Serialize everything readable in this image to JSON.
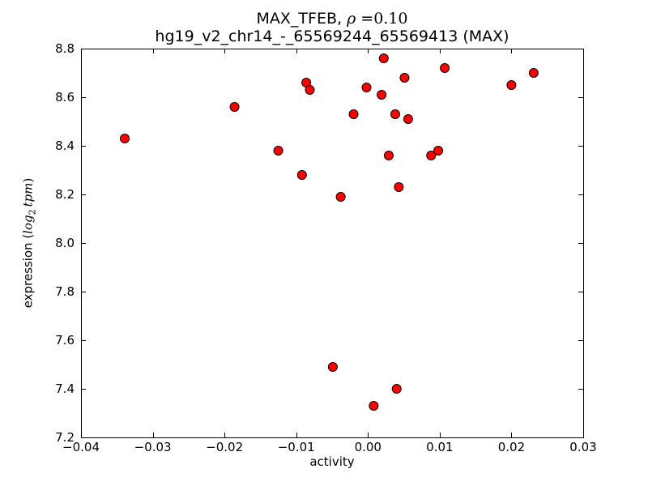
{
  "title": {
    "line1_prefix": "MAX_TFEB, ",
    "rho_symbol": "ρ",
    "rho_value": " =0.10",
    "line2": "hg19_v2_chr14_-_65569244_65569413 (MAX)"
  },
  "axes": {
    "xlabel": "activity",
    "ylabel_prefix": "expression (",
    "ylabel_log": "log",
    "ylabel_sub": "2",
    "ylabel_tpm": "tpm",
    "ylabel_close": ")"
  },
  "chart_data": {
    "type": "scatter",
    "title": "MAX_TFEB, ρ =0.10",
    "subtitle": "hg19_v2_chr14_-_65569244_65569413 (MAX)",
    "xlabel": "activity",
    "ylabel": "expression (log2 tpm)",
    "xlim": [
      -0.04,
      0.03
    ],
    "ylim": [
      7.2,
      8.8
    ],
    "grid": false,
    "legend": null,
    "marker_color": "#ff0000",
    "marker_edge_color": "#000000",
    "frame_color": "#000000",
    "xtick_values": [
      -0.04,
      -0.03,
      -0.02,
      -0.01,
      0.0,
      0.01,
      0.02,
      0.03
    ],
    "xtick_labels": [
      "−0.04",
      "−0.03",
      "−0.02",
      "−0.01",
      "0.00",
      "0.01",
      "0.02",
      "0.03"
    ],
    "ytick_values": [
      7.2,
      7.4,
      7.6,
      7.8,
      8.0,
      8.2,
      8.4,
      8.6,
      8.8
    ],
    "ytick_labels": [
      "7.2",
      "7.4",
      "7.6",
      "7.8",
      "8.0",
      "8.2",
      "8.4",
      "8.6",
      "8.8"
    ],
    "points": [
      [
        -0.0339,
        8.43
      ],
      [
        -0.0186,
        8.56
      ],
      [
        -0.0125,
        8.38
      ],
      [
        -0.0092,
        8.28
      ],
      [
        -0.0086,
        8.66
      ],
      [
        -0.0081,
        8.63
      ],
      [
        -0.0049,
        7.49
      ],
      [
        -0.0038,
        8.19
      ],
      [
        -0.002,
        8.53
      ],
      [
        -0.0002,
        8.64
      ],
      [
        0.0008,
        7.33
      ],
      [
        0.0019,
        8.61
      ],
      [
        0.0022,
        8.76
      ],
      [
        0.0029,
        8.36
      ],
      [
        0.0038,
        8.53
      ],
      [
        0.004,
        7.4
      ],
      [
        0.0043,
        8.23
      ],
      [
        0.0051,
        8.68
      ],
      [
        0.0056,
        8.51
      ],
      [
        0.0088,
        8.36
      ],
      [
        0.0098,
        8.38
      ],
      [
        0.0107,
        8.72
      ],
      [
        0.02,
        8.65
      ],
      [
        0.0231,
        8.7
      ]
    ]
  }
}
